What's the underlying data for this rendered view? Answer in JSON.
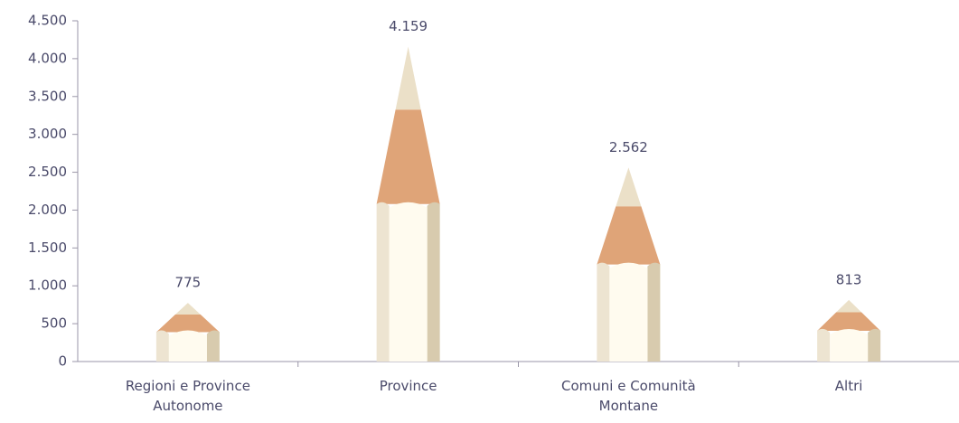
{
  "chart_data": {
    "type": "pencil",
    "categories": [
      "Regioni e Province Autonome",
      "Province",
      "Comuni e Comunità Montane",
      "Altri"
    ],
    "values": [
      775,
      4159,
      2562,
      813
    ],
    "value_labels": [
      "775",
      "4.159",
      "2.562",
      "813"
    ],
    "ylim": [
      0,
      4500
    ],
    "yticks": [
      0,
      500,
      {
        "value": 1000,
        "label": "1.000"
      },
      {
        "value": 1500,
        "label": "1.500"
      },
      {
        "value": 2000,
        "label": "2.000"
      },
      {
        "value": 2500,
        "label": "2.500"
      },
      {
        "value": 3000,
        "label": "3.000"
      },
      {
        "value": 3500,
        "label": "3.500"
      },
      {
        "value": 4000,
        "label": "4.000"
      },
      {
        "value": 4500,
        "label": "4.500"
      }
    ]
  }
}
